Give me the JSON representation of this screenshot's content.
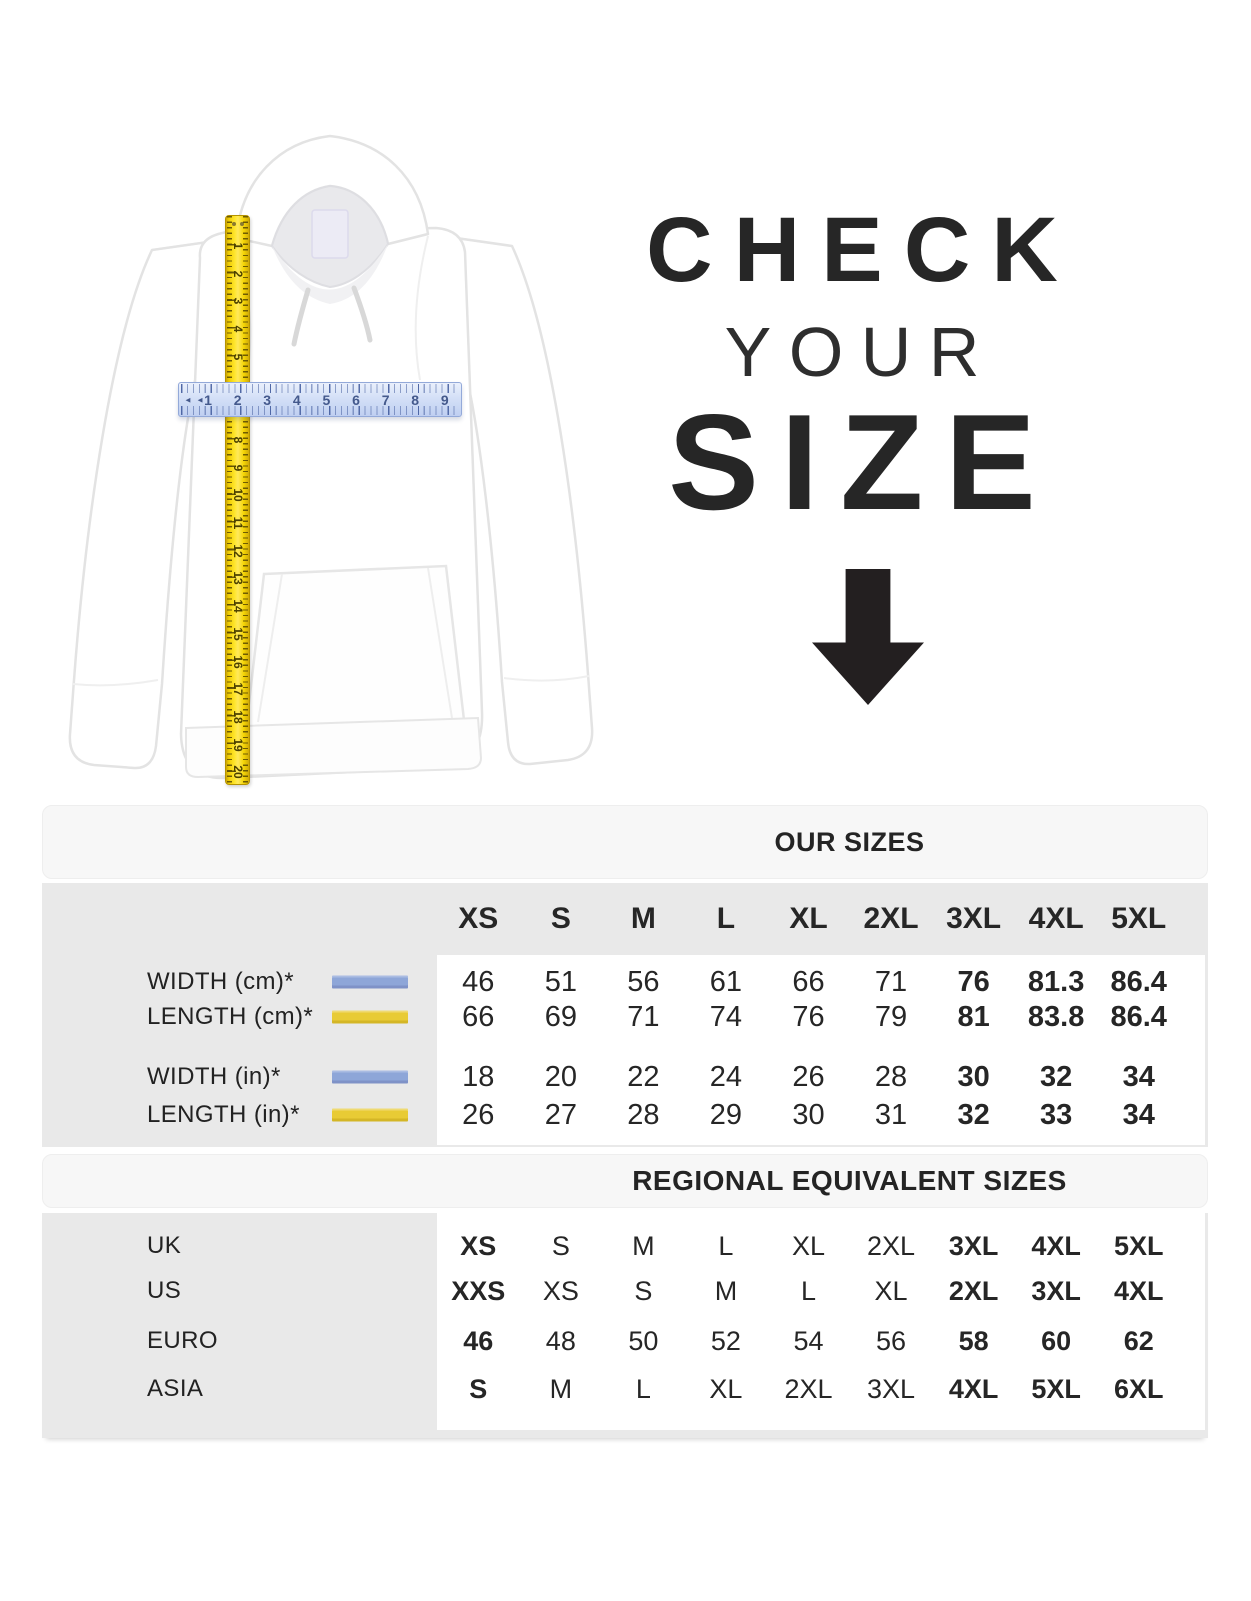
{
  "title": {
    "check": "CHECK",
    "your": "YOUR",
    "size": "SIZE"
  },
  "hero": {
    "tape_numbers": [
      "1",
      "2",
      "3",
      "4",
      "5",
      "6",
      "7",
      "8",
      "9",
      "10",
      "11",
      "12",
      "13",
      "14",
      "15",
      "16",
      "17",
      "18",
      "19",
      "20"
    ],
    "ruler_numbers": [
      "1",
      "2",
      "3",
      "4",
      "5",
      "6",
      "7",
      "8",
      "9"
    ],
    "ruler_start_marks": "◄ ◄",
    "tape_color": "#F5D700",
    "ruler_color": "#C9D8F4"
  },
  "table": {
    "our_sizes_header": "OUR SIZES",
    "regional_header": "REGIONAL EQUIVALENT SIZES",
    "size_columns": [
      "XS",
      "S",
      "M",
      "L",
      "XL",
      "2XL",
      "3XL",
      "4XL",
      "5XL"
    ],
    "measure_rows": [
      {
        "label": "WIDTH (cm)*",
        "swatch": "blue",
        "values": [
          "46",
          "51",
          "56",
          "61",
          "66",
          "71",
          "76",
          "81.3",
          "86.4"
        ]
      },
      {
        "label": "LENGTH (cm)*",
        "swatch": "yellow",
        "values": [
          "66",
          "69",
          "71",
          "74",
          "76",
          "79",
          "81",
          "83.8",
          "86.4"
        ]
      },
      {
        "label": "WIDTH (in)*",
        "swatch": "blue",
        "values": [
          "18",
          "20",
          "22",
          "24",
          "26",
          "28",
          "30",
          "32",
          "34"
        ]
      },
      {
        "label": "LENGTH (in)*",
        "swatch": "yellow",
        "values": [
          "26",
          "27",
          "28",
          "29",
          "30",
          "31",
          "32",
          "33",
          "34"
        ]
      }
    ],
    "regional_rows": [
      {
        "label": "UK",
        "values": [
          "XS",
          "S",
          "M",
          "L",
          "XL",
          "2XL",
          "3XL",
          "4XL",
          "5XL"
        ]
      },
      {
        "label": "US",
        "values": [
          "XXS",
          "XS",
          "S",
          "M",
          "L",
          "XL",
          "2XL",
          "3XL",
          "4XL"
        ]
      },
      {
        "label": "EURO",
        "values": [
          "46",
          "48",
          "50",
          "52",
          "54",
          "56",
          "58",
          "60",
          "62"
        ]
      },
      {
        "label": "ASIA",
        "values": [
          "S",
          "M",
          "L",
          "XL",
          "2XL",
          "3XL",
          "4XL",
          "5XL",
          "6XL"
        ]
      }
    ],
    "colors": {
      "band_light": "#F7F7F7",
      "band_gray": "#E9E9E9",
      "panel_white": "#FFFFFF",
      "swatch_blue": "#8EA6D8",
      "swatch_yellow": "#E8CB35",
      "text": "#262626"
    }
  }
}
